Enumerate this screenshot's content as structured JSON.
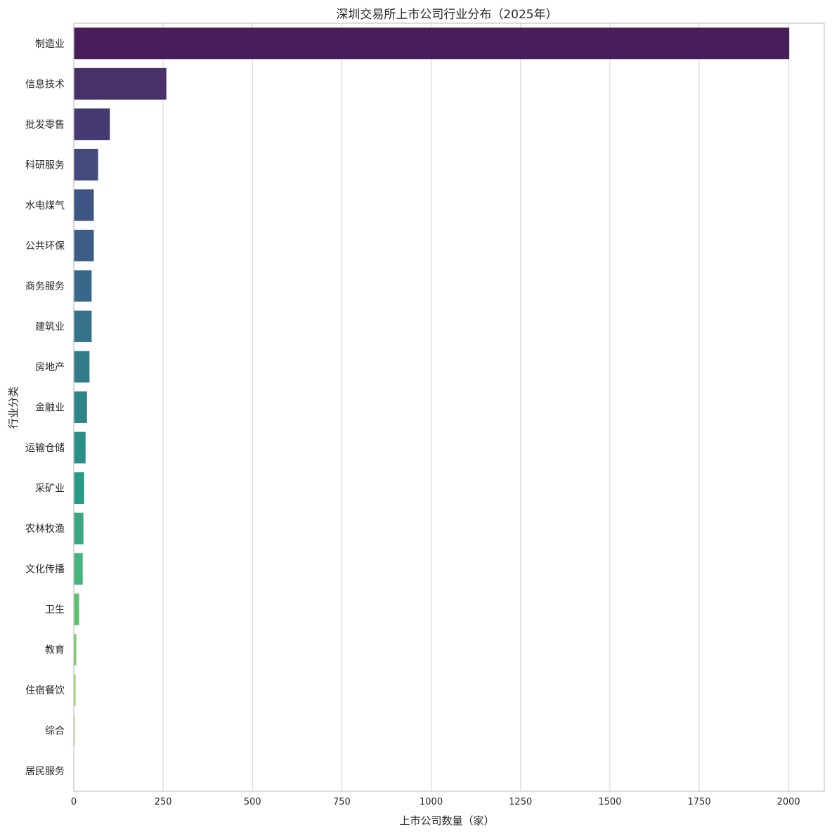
{
  "chart_data": {
    "type": "bar",
    "orientation": "horizontal",
    "title": "深圳交易所上市公司行业分布（2025年）",
    "xlabel": "上市公司数量（家）",
    "ylabel": "行业分类",
    "xlim": [
      0,
      2100
    ],
    "xticks": [
      0,
      250,
      500,
      750,
      1000,
      1250,
      1500,
      1750,
      2000
    ],
    "grid": "vertical",
    "palette": "viridis",
    "categories": [
      "制造业",
      "信息技术",
      "批发零售",
      "科研服务",
      "水电煤气",
      "公共环保",
      "商务服务",
      "建筑业",
      "房地产",
      "金融业",
      "运输仓储",
      "采矿业",
      "农林牧渔",
      "文化传播",
      "卫生",
      "教育",
      "住宿餐饮",
      "综合",
      "居民服务"
    ],
    "values": [
      2002,
      259,
      101,
      68,
      56,
      56,
      50,
      50,
      44,
      37,
      33,
      29,
      27,
      25,
      15,
      7,
      5,
      3,
      1
    ],
    "colors": [
      "#471d5a",
      "#483069",
      "#473a73",
      "#444a7d",
      "#3e5482",
      "#3d5d87",
      "#386889",
      "#35728a",
      "#317b8a",
      "#2e848b",
      "#2a8e89",
      "#259a86",
      "#3aa882",
      "#45b57b",
      "#5cc16f",
      "#76ca64",
      "#96d254",
      "#bcd94d",
      "#dbe352"
    ]
  }
}
